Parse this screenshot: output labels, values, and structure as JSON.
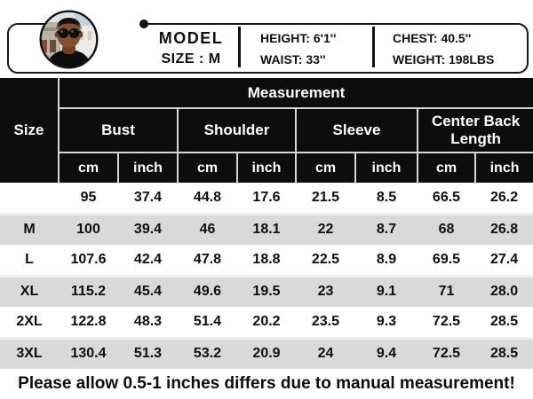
{
  "banner": {
    "model_label": "MODEL",
    "model_size": "SIZE : M",
    "stats": {
      "height": "HEIGHT: 6'1''",
      "waist": "WAIST: 33''",
      "chest": "CHEST: 40.5''",
      "weight": "WEIGHT: 198LBS"
    }
  },
  "chart_data": {
    "type": "table",
    "title": "Measurement",
    "row_header": "Size",
    "column_groups": [
      "Bust",
      "Shoulder",
      "Sleeve",
      "Center Back Length"
    ],
    "units": [
      "cm",
      "inch"
    ],
    "rows": [
      {
        "size": "",
        "values": [
          "95",
          "37.4",
          "44.8",
          "17.6",
          "21.5",
          "8.5",
          "66.5",
          "26.2"
        ]
      },
      {
        "size": "M",
        "values": [
          "100",
          "39.4",
          "46",
          "18.1",
          "22",
          "8.7",
          "68",
          "26.8"
        ]
      },
      {
        "size": "L",
        "values": [
          "107.6",
          "42.4",
          "47.8",
          "18.8",
          "22.5",
          "8.9",
          "69.5",
          "27.4"
        ]
      },
      {
        "size": "XL",
        "values": [
          "115.2",
          "45.4",
          "49.6",
          "19.5",
          "23",
          "9.1",
          "71",
          "28.0"
        ]
      },
      {
        "size": "2XL",
        "values": [
          "122.8",
          "48.3",
          "51.4",
          "20.2",
          "23.5",
          "9.3",
          "72.5",
          "28.5"
        ]
      },
      {
        "size": "3XL",
        "values": [
          "130.4",
          "51.3",
          "53.2",
          "20.9",
          "24",
          "9.4",
          "72.5",
          "28.5"
        ]
      }
    ]
  },
  "note": "Please allow 0.5-1 inches differs due to manual measurement!",
  "colors": {
    "header_bg": "#0d0d0d",
    "header_text": "#ffffff",
    "grid_line": "#d6d6d6",
    "row_alt": "#d9d9d9",
    "text": "#111111"
  }
}
